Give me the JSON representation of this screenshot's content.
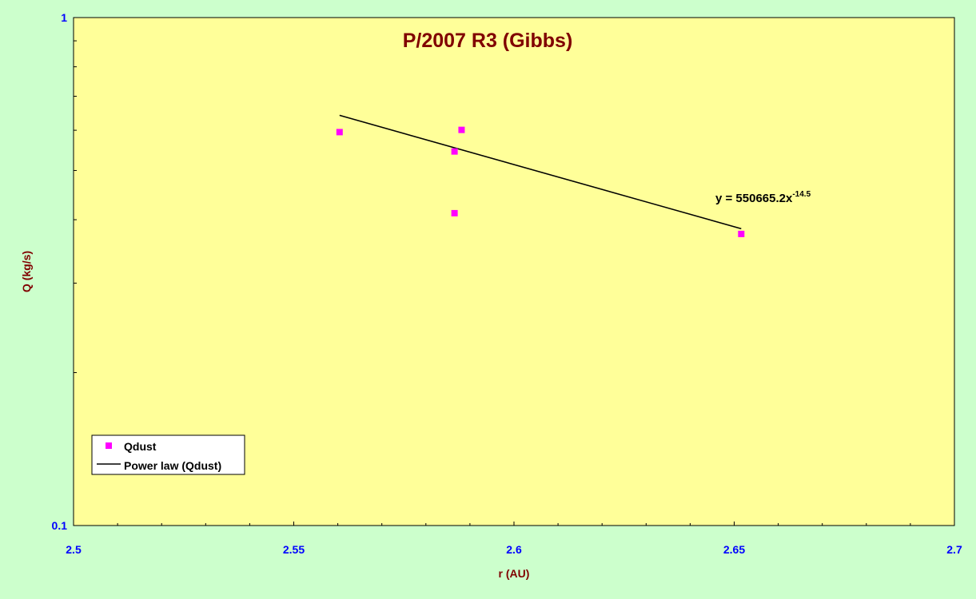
{
  "chart_data": {
    "type": "scatter",
    "title": "P/2007 R3 (Gibbs)",
    "xlabel": "r (AU)",
    "ylabel": "Q (kg/s)",
    "xlim": [
      2.5,
      2.7
    ],
    "ylim": [
      0.1,
      1
    ],
    "y_scale": "log",
    "x_ticks": [
      "2.5",
      "2.55",
      "2.6",
      "2.65",
      "2.7"
    ],
    "y_ticks": [
      "0.1",
      "1"
    ],
    "series": [
      {
        "name": "Qdust",
        "type": "scatter",
        "color": "#ff00ff",
        "x": [
          2.5604,
          2.5865,
          2.5865,
          2.5881,
          2.6516
        ],
        "y": [
          0.595,
          0.545,
          0.412,
          0.601,
          0.375
        ]
      },
      {
        "name": "Power law (Qdust)",
        "type": "line",
        "color": "#000000",
        "x": [
          2.5604,
          2.6516
        ],
        "y": [
          0.642,
          0.384
        ]
      }
    ],
    "equation": {
      "text": "y = 550665.2x",
      "exponent": "-14.5"
    },
    "legend_position": "bottom-left",
    "grid": false,
    "colors": {
      "page_background": "#ccffcc",
      "plot_background": "#ffff99",
      "title": "#800000",
      "axis_title": "#800000",
      "tick_label": "#0000ff"
    }
  }
}
